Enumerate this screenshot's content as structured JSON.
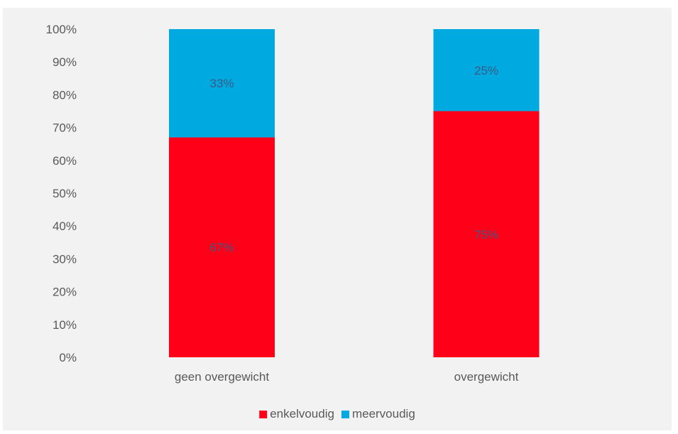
{
  "chart_data": {
    "type": "bar",
    "stacked": true,
    "percent_stacked": true,
    "categories": [
      "geen overgewicht",
      "overgewicht"
    ],
    "series": [
      {
        "name": "enkelvoudig",
        "values": [
          67,
          75
        ],
        "labels": [
          "67%",
          "75%"
        ],
        "color": "#ff0019"
      },
      {
        "name": "meervoudig",
        "values": [
          33,
          25
        ],
        "labels": [
          "33%",
          "25%"
        ],
        "color": "#00a9e0"
      }
    ],
    "ylim": [
      0,
      100
    ],
    "yticks": [
      "0%",
      "10%",
      "20%",
      "30%",
      "40%",
      "50%",
      "60%",
      "70%",
      "80%",
      "90%",
      "100%"
    ],
    "grid": false,
    "legend_position": "bottom",
    "background": "#f2f2f2",
    "data_label_color": "#3c5a84",
    "axis_text_color": "#595959"
  }
}
